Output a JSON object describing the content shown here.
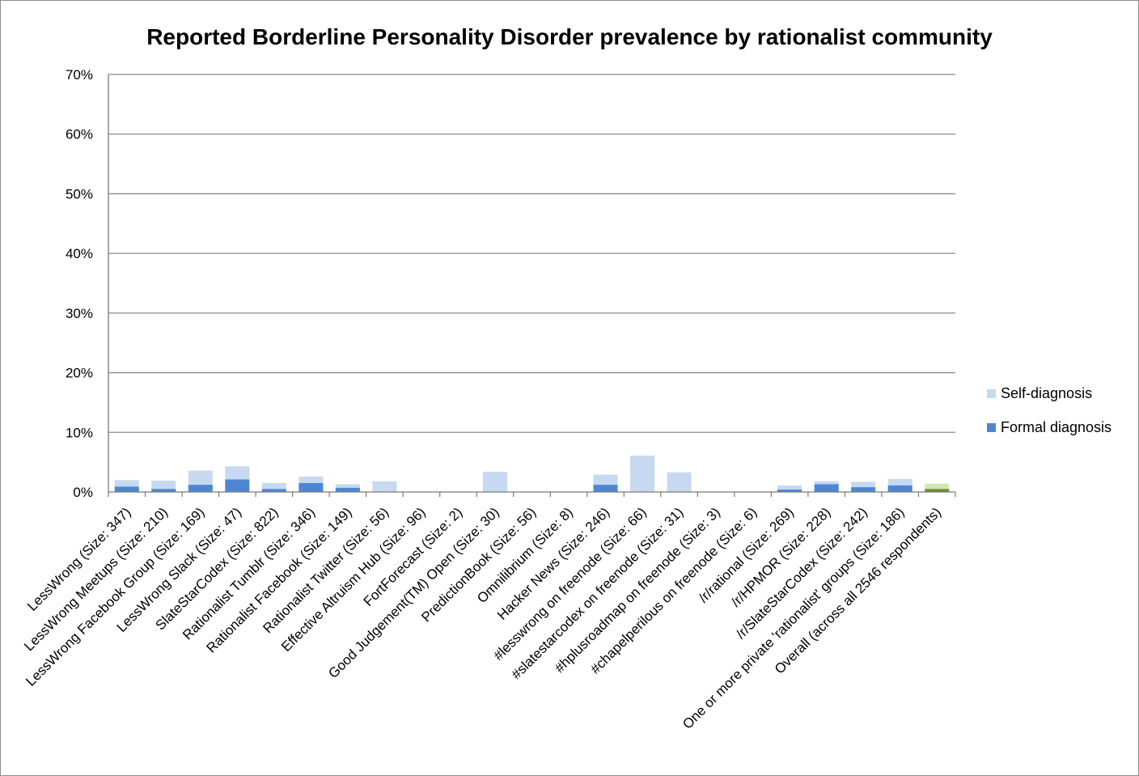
{
  "chart_data": {
    "type": "bar",
    "stacking": "overlapped",
    "title": "Reported Borderline Personality Disorder prevalence by rationalist community",
    "xlabel": "",
    "ylabel": "",
    "ylim": [
      0,
      70
    ],
    "y_ticks": [
      "0%",
      "10%",
      "20%",
      "30%",
      "40%",
      "50%",
      "60%",
      "70%"
    ],
    "grid": true,
    "legend_position": "right",
    "categories": [
      "LessWrong (Size: 347)",
      "LessWrong Meetups (Size: 210)",
      "LessWrong Facebook Group (Size: 169)",
      "LessWrong Slack (Size: 47)",
      "SlateStarCodex (Size: 822)",
      "Rationalist Tumblr (Size: 346)",
      "Rationalist Facebook (Size: 149)",
      "Rationalist Twitter (Size: 56)",
      "Effective Altruism Hub (Size: 96)",
      "FortForecast (Size: 2)",
      "Good Judgement(TM) Open  (Size: 30)",
      "PredictionBook (Size: 56)",
      "Omnilibrium (Size: 8)",
      "Hacker News (Size: 246)",
      "#lesswrong on freenode  (Size: 66)",
      "#slatestarcodex on freenode  (Size: 31)",
      "#hplusroadmap on freenode  (Size: 3)",
      "#chapelperilous on freenode (Size: 6)",
      "/r/rational (Size: 269)",
      "/r/HPMOR (Size: 228)",
      "/r/SlateStarCodex (Size: 242)",
      "One or more private 'rationalist' groups  (Size: 186)",
      "Overall (across all 2546 respondents)"
    ],
    "series": [
      {
        "name": "Self-diagnosis",
        "color": "#c6d9f1",
        "values": [
          2.0,
          1.9,
          3.6,
          4.3,
          1.5,
          2.6,
          1.3,
          1.8,
          0,
          0,
          3.4,
          0,
          0,
          2.9,
          6.1,
          3.3,
          0,
          0,
          1.1,
          1.8,
          1.7,
          2.2,
          1.4
        ]
      },
      {
        "name": "Formal diagnosis",
        "color": "#4f86d3",
        "values": [
          0.9,
          0.5,
          1.2,
          2.1,
          0.5,
          1.5,
          0.7,
          0,
          0,
          0,
          0,
          0,
          0,
          1.2,
          0,
          0,
          0,
          0,
          0.4,
          1.3,
          0.8,
          1.1,
          0.5
        ]
      }
    ],
    "overall_colors": {
      "self": "#d5e6b2",
      "formal": "#6b8e2f"
    }
  }
}
